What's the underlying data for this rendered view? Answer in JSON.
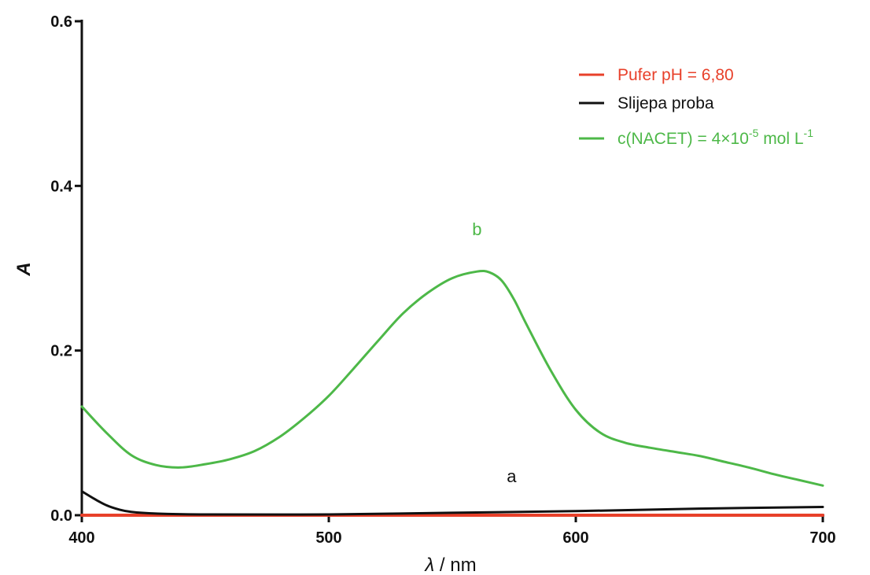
{
  "chart_data": {
    "type": "line",
    "title": "",
    "xlabel": {
      "symbol": "λ",
      "unit": " / nm"
    },
    "ylabel": "A",
    "xlim": [
      400,
      700
    ],
    "ylim": [
      0,
      0.6
    ],
    "x_ticks": [
      400,
      500,
      600,
      700
    ],
    "x_tick_labels": [
      "400",
      "500",
      "600",
      "700"
    ],
    "y_ticks": [
      0.0,
      0.2,
      0.4,
      0.6
    ],
    "y_tick_labels": [
      "0.0",
      "0.2",
      "0.4",
      "0.6"
    ],
    "grid": false,
    "legend_position": "top-right",
    "series": [
      {
        "key": "pufer",
        "name": "Pufer pH = 6,80",
        "color": "#e8402a",
        "x": [
          400,
          420,
          450,
          500,
          550,
          600,
          650,
          700
        ],
        "y": [
          0.0,
          0.0,
          0.0,
          0.0,
          0.0,
          0.0,
          0.0,
          0.0
        ]
      },
      {
        "key": "slijepa",
        "name": "Slijepa proba",
        "color": "#111111",
        "x": [
          400,
          405,
          410,
          415,
          420,
          430,
          450,
          500,
          550,
          600,
          650,
          700
        ],
        "y": [
          0.029,
          0.02,
          0.012,
          0.007,
          0.004,
          0.002,
          0.001,
          0.001,
          0.003,
          0.005,
          0.008,
          0.01
        ]
      },
      {
        "key": "nacet",
        "name_parts": [
          "c(NACET) = 4×10",
          "-5",
          " mol L",
          "-1"
        ],
        "color": "#4db848",
        "x": [
          400,
          410,
          420,
          430,
          440,
          450,
          460,
          470,
          480,
          490,
          500,
          510,
          520,
          530,
          540,
          550,
          560,
          565,
          570,
          575,
          580,
          590,
          600,
          610,
          620,
          630,
          640,
          650,
          660,
          670,
          680,
          690,
          700
        ],
        "y": [
          0.132,
          0.1,
          0.073,
          0.061,
          0.058,
          0.062,
          0.068,
          0.078,
          0.095,
          0.118,
          0.145,
          0.178,
          0.212,
          0.245,
          0.27,
          0.288,
          0.296,
          0.295,
          0.285,
          0.262,
          0.232,
          0.175,
          0.128,
          0.1,
          0.088,
          0.082,
          0.077,
          0.072,
          0.065,
          0.058,
          0.05,
          0.043,
          0.036
        ]
      }
    ],
    "annotations": [
      {
        "text": "b",
        "x": 560,
        "y": 0.34,
        "color": "#4db848"
      },
      {
        "text": "a",
        "x": 574,
        "y": 0.04,
        "color": "#111111"
      }
    ]
  }
}
